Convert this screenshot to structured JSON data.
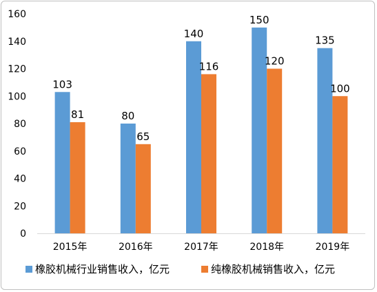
{
  "chart_data": {
    "type": "bar",
    "categories": [
      "2015年",
      "2016年",
      "2017年",
      "2018年",
      "2019年"
    ],
    "series": [
      {
        "name": "橡胶机械行业销售收入，亿元",
        "values": [
          103,
          80,
          140,
          150,
          135
        ],
        "color": "#5b9bd5"
      },
      {
        "name": "纯橡胶机械销售收入，亿元",
        "values": [
          81,
          65,
          116,
          120,
          100
        ],
        "color": "#ed7d31"
      }
    ],
    "yticks": [
      0,
      20,
      40,
      60,
      80,
      100,
      120,
      140,
      160
    ],
    "ylim": [
      0,
      160
    ],
    "grid": false,
    "legend_position": "bottom"
  }
}
